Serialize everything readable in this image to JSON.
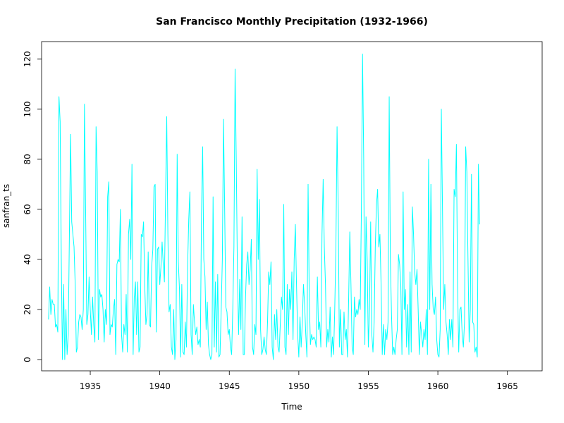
{
  "chart_data": {
    "type": "line",
    "title": "San Francisco Monthly Precipitation (1932-1966)",
    "xlabel": "Time",
    "ylabel": "sanfran_ts",
    "xlim": [
      1931.5,
      1967.5
    ],
    "ylim": [
      -4.5,
      127
    ],
    "x_ticks": [
      1935,
      1940,
      1945,
      1950,
      1955,
      1960,
      1965
    ],
    "y_ticks": [
      0,
      20,
      40,
      60,
      80,
      100,
      120
    ],
    "x_tick_labels": [
      "1935",
      "1940",
      "1945",
      "1950",
      "1955",
      "1960",
      "1965"
    ],
    "y_tick_labels": [
      "0",
      "20",
      "40",
      "60",
      "80",
      "100",
      "120"
    ],
    "grid": false,
    "line_color": "#00FFFF",
    "series": [
      {
        "start": 1932.0,
        "frequency": 12,
        "values": [
          16,
          29,
          18,
          24,
          22,
          22,
          13,
          14,
          11,
          105,
          95,
          40,
          0,
          30,
          0,
          20,
          2,
          10,
          50,
          90,
          55,
          50,
          45,
          30,
          3,
          5,
          15,
          18,
          17,
          12,
          20,
          102,
          60,
          14,
          18,
          33,
          20,
          10,
          25,
          14,
          7,
          93,
          75,
          8,
          28,
          25,
          26,
          20,
          7,
          20,
          14,
          65,
          71,
          10,
          14,
          13,
          20,
          24,
          2,
          38,
          40,
          39,
          60,
          10,
          3,
          14,
          10,
          26,
          3,
          50,
          56,
          40,
          78,
          2,
          25,
          31,
          10,
          31,
          3,
          5,
          50,
          49,
          55,
          30,
          14,
          18,
          43,
          14,
          13,
          37,
          44,
          69,
          70,
          11,
          44,
          45,
          30,
          37,
          47,
          38,
          31,
          65,
          97,
          50,
          19,
          22,
          5,
          2,
          20,
          0,
          8,
          82,
          39,
          28,
          1,
          30,
          3,
          2,
          15,
          5,
          37,
          56,
          67,
          10,
          2,
          22,
          15,
          10,
          13,
          6,
          8,
          5,
          58,
          85,
          40,
          33,
          12,
          23,
          6,
          2,
          0,
          2,
          65,
          5,
          31,
          3,
          34,
          1,
          2,
          20,
          40,
          96,
          60,
          21,
          19,
          10,
          12,
          5,
          2,
          20,
          45,
          116,
          80,
          35,
          10,
          32,
          12,
          57,
          2,
          2,
          25,
          38,
          43,
          30,
          36,
          48,
          5,
          2,
          14,
          10,
          76,
          40,
          64,
          12,
          2,
          4,
          9,
          4,
          2,
          15,
          35,
          30,
          39,
          5,
          0,
          18,
          8,
          20,
          5,
          3,
          14,
          25,
          20,
          62,
          5,
          2,
          30,
          10,
          28,
          20,
          35,
          8,
          40,
          54,
          30,
          10,
          1,
          17,
          5,
          15,
          30,
          22,
          10,
          1,
          70,
          25,
          6,
          10,
          8,
          9,
          8,
          5,
          33,
          12,
          15,
          5,
          50,
          72,
          45,
          30,
          5,
          12,
          7,
          21,
          1,
          9,
          2,
          20,
          45,
          93,
          60,
          5,
          20,
          2,
          2,
          19,
          8,
          12,
          1,
          24,
          51,
          30,
          5,
          2,
          25,
          17,
          20,
          18,
          24,
          20,
          60,
          122,
          80,
          6,
          57,
          40,
          5,
          20,
          55,
          10,
          3,
          15,
          45,
          62,
          68,
          45,
          50,
          30,
          2,
          14,
          2,
          12,
          8,
          15,
          105,
          40,
          18,
          2,
          5,
          2,
          8,
          12,
          42,
          38,
          30,
          2,
          67,
          20,
          28,
          5,
          22,
          2,
          35,
          3,
          61,
          50,
          35,
          30,
          36,
          20,
          2,
          15,
          10,
          5,
          12,
          8,
          20,
          2,
          80,
          20,
          70,
          30,
          20,
          18,
          25,
          8,
          2,
          1,
          12,
          100,
          60,
          20,
          30,
          15,
          10,
          2,
          16,
          8,
          16,
          5,
          68,
          65,
          86,
          30,
          3,
          20,
          21,
          10,
          5,
          15,
          85,
          75,
          40,
          7,
          20,
          74,
          15,
          14,
          3,
          5,
          1,
          78,
          54
        ]
      }
    ]
  }
}
